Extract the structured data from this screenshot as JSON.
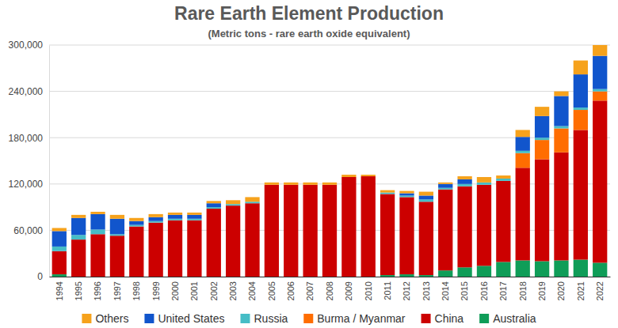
{
  "chart_data": {
    "type": "bar",
    "title": "Rare Earth Element Production",
    "subtitle": "(Metric tons - rare earth oxide equivalent)",
    "stacked": true,
    "grid": true,
    "legend": "bottom",
    "categories": [
      "1994",
      "1995",
      "1996",
      "1997",
      "1998",
      "1999",
      "2000",
      "2001",
      "2002",
      "2003",
      "2004",
      "2005",
      "2006",
      "2007",
      "2008",
      "2009",
      "2010",
      "2011",
      "2012",
      "2013",
      "2014",
      "2015",
      "2016",
      "2017",
      "2018",
      "2019",
      "2020",
      "2021",
      "2022"
    ],
    "ylim": [
      0,
      300000
    ],
    "yticks": [
      0,
      {
        "value": 60000,
        "label": "60,000"
      },
      {
        "value": 120000,
        "label": "120,000"
      },
      {
        "value": 180000,
        "label": "180,000"
      },
      {
        "value": 240000,
        "label": "240,000"
      },
      {
        "value": 300000,
        "label": "300,000"
      }
    ],
    "series": [
      {
        "name": "Australia",
        "color": "#0f9d58",
        "values": [
          3000,
          0,
          0,
          0,
          0,
          0,
          0,
          0,
          0,
          0,
          0,
          0,
          0,
          0,
          0,
          0,
          0,
          2000,
          3000,
          2000,
          8000,
          12000,
          14000,
          19000,
          21000,
          20000,
          21000,
          22000,
          18000
        ]
      },
      {
        "name": "China",
        "color": "#cc0000",
        "values": [
          30000,
          48000,
          55000,
          53000,
          65000,
          70000,
          73000,
          73000,
          88000,
          92000,
          95000,
          119000,
          119000,
          119000,
          119000,
          129000,
          130000,
          105000,
          100000,
          95000,
          105000,
          105000,
          105000,
          105000,
          120000,
          132000,
          140000,
          168000,
          210000
        ]
      },
      {
        "name": "Burma / Myanmar",
        "color": "#ff6d01",
        "values": [
          0,
          0,
          0,
          0,
          0,
          0,
          0,
          0,
          0,
          0,
          0,
          0,
          0,
          0,
          0,
          0,
          0,
          0,
          0,
          0,
          0,
          0,
          0,
          0,
          19000,
          25000,
          31000,
          26000,
          12000
        ]
      },
      {
        "name": "Russia",
        "color": "#46bdc6",
        "values": [
          6000,
          6000,
          6000,
          2000,
          2000,
          2000,
          2000,
          2000,
          2000,
          2000,
          2000,
          0,
          0,
          0,
          0,
          0,
          0,
          2000,
          2000,
          3000,
          2000,
          3000,
          3000,
          3000,
          3000,
          3000,
          3000,
          3000,
          3000
        ]
      },
      {
        "name": "United States",
        "color": "#1155cc",
        "values": [
          20000,
          22000,
          20000,
          20000,
          5000,
          5000,
          5000,
          5000,
          5000,
          0,
          0,
          0,
          0,
          0,
          0,
          0,
          0,
          0,
          3000,
          5000,
          5000,
          6000,
          0,
          0,
          18000,
          28000,
          39000,
          43000,
          43000
        ]
      },
      {
        "name": "Others",
        "color": "#f6a21c",
        "values": [
          4000,
          4000,
          3000,
          5000,
          4000,
          4000,
          3000,
          3000,
          3000,
          5000,
          6000,
          3000,
          3000,
          3000,
          3000,
          3000,
          2000,
          3000,
          3000,
          5000,
          2000,
          4000,
          7000,
          4000,
          9000,
          12000,
          6000,
          18000,
          14000
        ]
      }
    ]
  }
}
